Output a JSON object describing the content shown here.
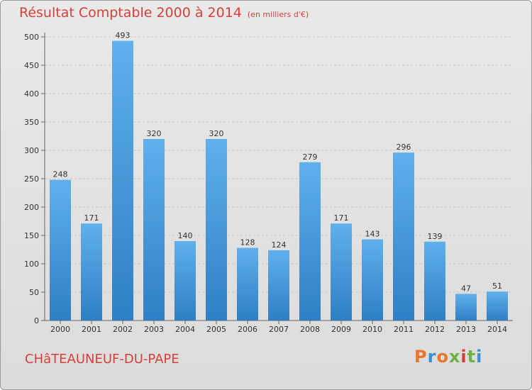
{
  "chart_data": {
    "type": "bar",
    "title": "Résultat Comptable 2000 à 2014",
    "subtitle": "(en milliers d'€)",
    "categories": [
      "2000",
      "2001",
      "2002",
      "2003",
      "2004",
      "2005",
      "2006",
      "2007",
      "2008",
      "2009",
      "2010",
      "2011",
      "2012",
      "2013",
      "2014"
    ],
    "values": [
      248,
      171,
      493,
      320,
      140,
      320,
      128,
      124,
      279,
      171,
      143,
      296,
      139,
      47,
      51
    ],
    "ylim": [
      0,
      500
    ],
    "yticks": [
      0,
      50,
      100,
      150,
      200,
      250,
      300,
      350,
      400,
      450,
      500
    ],
    "xlabel": "",
    "ylabel": "",
    "grid": true,
    "bar_color": "#4a9fe0"
  },
  "footer": {
    "location": "CHâTEAUNEUF-DU-PAPE",
    "logo": "Proxiti"
  },
  "colors": {
    "title": "#d6403a",
    "logo_letters": [
      "#e8762c",
      "#3a8fd6",
      "#e8762c",
      "#6cb33f",
      "#d6403a",
      "#6cb33f",
      "#3a8fd6"
    ]
  }
}
